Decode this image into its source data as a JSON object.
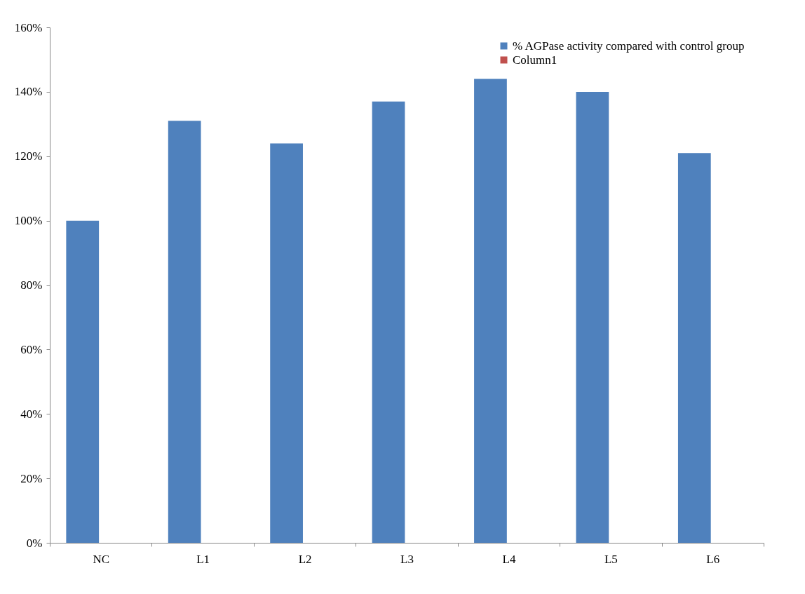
{
  "chart_data": {
    "type": "bar",
    "categories": [
      "NC",
      "L1",
      "L2",
      "L3",
      "L4",
      "L5",
      "L6"
    ],
    "series": [
      {
        "name": "%  AGPase activity  compared with control group",
        "color": "#4f81bd",
        "values": [
          100,
          131,
          124,
          137,
          144,
          140,
          121
        ]
      },
      {
        "name": "Column1",
        "color": "#c0504d",
        "values": [
          null,
          null,
          null,
          null,
          null,
          null,
          null
        ]
      }
    ],
    "ylim": [
      0,
      160
    ],
    "yticks": [
      {
        "value": 0,
        "label": "0%"
      },
      {
        "value": 20,
        "label": "20%"
      },
      {
        "value": 40,
        "label": "40%"
      },
      {
        "value": 60,
        "label": "60%"
      },
      {
        "value": 80,
        "label": "80%"
      },
      {
        "value": 100,
        "label": "100%"
      },
      {
        "value": 120,
        "label": "120%"
      },
      {
        "value": 140,
        "label": "140%"
      },
      {
        "value": 160,
        "label": "160%"
      }
    ],
    "grid": false,
    "legend": "top right"
  }
}
